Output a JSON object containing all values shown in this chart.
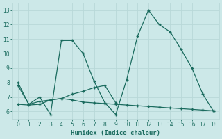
{
  "xlabel": "Humidex (Indice chaleur)",
  "line1_x": [
    0,
    1,
    2,
    3,
    4,
    5,
    6,
    7,
    8,
    9,
    10,
    11,
    12,
    13,
    14,
    15,
    16,
    17,
    18
  ],
  "line1_y": [
    8.0,
    6.5,
    7.0,
    5.8,
    10.9,
    10.9,
    10.0,
    8.1,
    6.6,
    5.8,
    8.2,
    11.2,
    13.0,
    12.0,
    11.5,
    10.3,
    9.0,
    7.2,
    6.0
  ],
  "line2_x": [
    0,
    1,
    2,
    3,
    4,
    5,
    6,
    7,
    8,
    9
  ],
  "line2_y": [
    7.8,
    6.5,
    6.7,
    6.8,
    6.9,
    7.2,
    7.4,
    7.65,
    7.8,
    6.6
  ],
  "line3_x": [
    0,
    1,
    2,
    3,
    4,
    5,
    6,
    7,
    8,
    9,
    10,
    11,
    12,
    13,
    14,
    15,
    16,
    17,
    18
  ],
  "line3_y": [
    6.5,
    6.45,
    6.5,
    6.8,
    6.9,
    6.8,
    6.65,
    6.6,
    6.55,
    6.5,
    6.45,
    6.4,
    6.35,
    6.3,
    6.25,
    6.2,
    6.15,
    6.1,
    6.05
  ],
  "line_color": "#1a6b5e",
  "bg_color": "#cce8e8",
  "grid_color": "#b8d8d8",
  "xlim": [
    -0.5,
    18.5
  ],
  "ylim": [
    5.5,
    13.5
  ],
  "yticks": [
    6,
    7,
    8,
    9,
    10,
    11,
    12,
    13
  ],
  "xticks": [
    0,
    1,
    2,
    3,
    4,
    5,
    6,
    7,
    8,
    9,
    10,
    11,
    12,
    13,
    14,
    15,
    16,
    17,
    18
  ]
}
